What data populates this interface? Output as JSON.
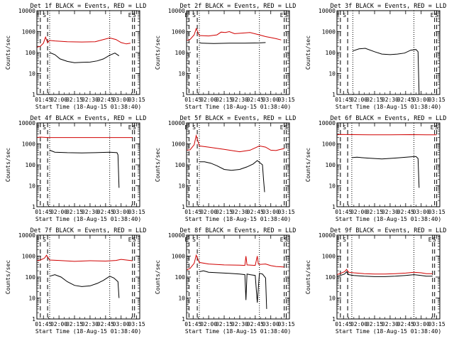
{
  "page": {
    "background": "#ffffff"
  },
  "colors": {
    "events": "#000000",
    "lld": "#d00000",
    "axis": "#000000"
  },
  "common": {
    "xlabel": "Start Time (18-Aug-15 01:38:40)",
    "ylabel": "Counts/sec",
    "x_ticks": [
      "01:45",
      "02:00",
      "02:15",
      "02:30",
      "02:45",
      "03:00",
      "03:15"
    ],
    "y_ticks": [
      "1",
      "10",
      "100",
      "1000",
      "10000"
    ],
    "markers": {
      "E": "E",
      "S": "S"
    }
  },
  "chart_data": [
    {
      "type": "line",
      "title": "Det 1f BLACK = Events, RED = LLD",
      "xlim": [
        "01:38:40",
        "03:18:00"
      ],
      "ylim": [
        1,
        10000
      ],
      "yscale": "log",
      "vlines_dashed": [
        "01:42",
        "01:49",
        "03:11",
        "03:13"
      ],
      "vlines_dotted": [
        "01:51",
        "02:49"
      ],
      "series": [
        {
          "name": "BLACK",
          "x": [
            "01:51",
            "01:56",
            "02:01",
            "02:08",
            "02:15",
            "02:22",
            "02:30",
            "02:37",
            "02:43",
            "02:49",
            "02:54",
            "02:58"
          ],
          "y": [
            100,
            80,
            50,
            38,
            33,
            34,
            35,
            40,
            50,
            75,
            95,
            70
          ]
        },
        {
          "name": "RED",
          "x": [
            "01:38:40",
            "01:42",
            "01:45",
            "01:47",
            "01:49",
            "01:51",
            "01:56",
            "02:08",
            "02:22",
            "02:35",
            "02:43",
            "02:49",
            "02:55",
            "03:00",
            "03:05",
            "03:09"
          ],
          "y": [
            180,
            200,
            280,
            550,
            300,
            380,
            360,
            330,
            320,
            330,
            420,
            500,
            420,
            300,
            260,
            280
          ]
        }
      ]
    },
    {
      "type": "line",
      "title": "Det 2f BLACK = Events, RED = LLD",
      "xlim": [
        "01:38:40",
        "03:18:00"
      ],
      "ylim": [
        1,
        10000
      ],
      "yscale": "log",
      "vlines_dashed": [
        "01:41",
        "01:49",
        "03:13",
        "03:15"
      ],
      "vlines_dotted": [
        "01:51",
        "02:49"
      ],
      "series": [
        {
          "name": "BLACK",
          "x": [
            "01:51",
            "01:53",
            "02:05",
            "02:20",
            "02:35",
            "02:49",
            "02:55"
          ],
          "y": [
            300,
            280,
            270,
            280,
            280,
            290,
            300
          ]
        },
        {
          "name": "RED",
          "x": [
            "01:38:40",
            "01:42",
            "01:46",
            "01:48",
            "01:51",
            "02:00",
            "02:08",
            "02:12",
            "02:16",
            "02:20",
            "02:25",
            "02:32",
            "02:40",
            "02:49",
            "02:55",
            "03:00",
            "03:05",
            "03:10"
          ],
          "y": [
            380,
            420,
            700,
            1400,
            650,
            620,
            700,
            950,
            900,
            1000,
            800,
            850,
            900,
            700,
            580,
            520,
            460,
            400
          ]
        }
      ]
    },
    {
      "type": "line",
      "title": "Det 3f BLACK = Events, RED = LLD",
      "xlim": [
        "01:38:40",
        "03:18:00"
      ],
      "ylim": [
        1,
        10000
      ],
      "yscale": "log",
      "vlines_dashed": [
        "01:42",
        "01:49",
        "03:13",
        "03:15"
      ],
      "vlines_dotted": [
        "01:54",
        "02:53"
      ],
      "series": [
        {
          "name": "BLACK",
          "x": [
            "01:54",
            "02:00",
            "02:06",
            "02:15",
            "02:22",
            "02:30",
            "02:37",
            "02:44",
            "02:50",
            "02:55",
            "02:57",
            "02:58"
          ],
          "y": [
            120,
            150,
            160,
            110,
            85,
            80,
            85,
            95,
            130,
            140,
            110,
            1
          ]
        }
      ]
    },
    {
      "type": "line",
      "title": "Det 4f BLACK = Events, RED = LLD",
      "xlim": [
        "01:38:40",
        "03:18:00"
      ],
      "ylim": [
        1,
        10000
      ],
      "yscale": "log",
      "vlines_dashed": [
        "01:42",
        "01:49",
        "03:11",
        "03:13"
      ],
      "vlines_dotted": [
        "01:51",
        "02:49"
      ],
      "series": [
        {
          "name": "BLACK",
          "x": [
            "01:51",
            "01:56",
            "02:08",
            "02:22",
            "02:35",
            "02:49",
            "02:56",
            "02:57",
            "02:58"
          ],
          "y": [
            500,
            400,
            380,
            370,
            380,
            400,
            380,
            300,
            8
          ]
        },
        {
          "name": "RED",
          "x": [
            "01:38:40",
            "01:42",
            "01:49",
            "02:08",
            "02:30",
            "02:49",
            "03:05",
            "03:11"
          ],
          "y": [
            2000,
            2100,
            2000,
            2000,
            2000,
            2000,
            2000,
            2000
          ]
        }
      ]
    },
    {
      "type": "line",
      "title": "Det 5f BLACK = Events, RED = LLD",
      "xlim": [
        "01:38:40",
        "03:18:00"
      ],
      "ylim": [
        1,
        10000
      ],
      "yscale": "log",
      "vlines_dashed": [
        "01:41",
        "01:49",
        "03:13",
        "03:15"
      ],
      "vlines_dotted": [
        "01:51",
        "02:49"
      ],
      "series": [
        {
          "name": "BLACK",
          "x": [
            "01:51",
            "01:56",
            "02:02",
            "02:08",
            "02:15",
            "02:22",
            "02:30",
            "02:37",
            "02:43",
            "02:47",
            "02:52",
            "02:53",
            "02:54"
          ],
          "y": [
            140,
            140,
            120,
            90,
            60,
            55,
            60,
            80,
            110,
            160,
            100,
            20,
            5
          ]
        },
        {
          "name": "RED",
          "x": [
            "01:38:40",
            "01:42",
            "01:46",
            "01:48",
            "01:51",
            "02:00",
            "02:15",
            "02:30",
            "02:40",
            "02:49",
            "02:55",
            "03:00",
            "03:05",
            "03:13"
          ],
          "y": [
            500,
            520,
            900,
            2500,
            800,
            700,
            550,
            420,
            500,
            800,
            700,
            500,
            480,
            600
          ]
        }
      ]
    },
    {
      "type": "line",
      "title": "Det 6f BLACK = Events, RED = LLD",
      "xlim": [
        "01:38:40",
        "03:18:00"
      ],
      "ylim": [
        1,
        10000
      ],
      "yscale": "log",
      "vlines_dashed": [
        "01:42",
        "01:49",
        "03:13",
        "03:15"
      ],
      "vlines_dotted": [
        "01:53",
        "02:53"
      ],
      "series": [
        {
          "name": "BLACK",
          "x": [
            "01:53",
            "01:58",
            "02:08",
            "02:22",
            "02:35",
            "02:50",
            "02:55",
            "02:57",
            "02:58"
          ],
          "y": [
            220,
            230,
            210,
            190,
            210,
            240,
            250,
            200,
            8
          ]
        },
        {
          "name": "RED",
          "x": [
            "01:38:40",
            "01:42",
            "01:53",
            "02:10",
            "02:30",
            "02:50",
            "03:05",
            "03:15"
          ],
          "y": [
            2700,
            2800,
            2750,
            2700,
            2700,
            2750,
            2700,
            2700
          ]
        }
      ]
    },
    {
      "type": "line",
      "title": "Det 7f BLACK = Events, RED = LLD",
      "xlim": [
        "01:38:40",
        "03:18:00"
      ],
      "ylim": [
        1,
        10000
      ],
      "yscale": "log",
      "vlines_dashed": [
        "01:42",
        "01:49",
        "03:11",
        "03:13"
      ],
      "vlines_dotted": [
        "01:51",
        "02:49"
      ],
      "series": [
        {
          "name": "BLACK",
          "x": [
            "01:51",
            "01:56",
            "02:02",
            "02:08",
            "02:15",
            "02:22",
            "02:30",
            "02:37",
            "02:43",
            "02:49",
            "02:53",
            "02:57",
            "02:58"
          ],
          "y": [
            110,
            130,
            100,
            60,
            40,
            35,
            38,
            50,
            70,
            110,
            90,
            60,
            10
          ]
        },
        {
          "name": "RED",
          "x": [
            "01:38:40",
            "01:42",
            "01:46",
            "01:48",
            "01:51",
            "02:00",
            "02:15",
            "02:30",
            "02:45",
            "02:55",
            "03:00",
            "03:05",
            "03:11"
          ],
          "y": [
            600,
            650,
            800,
            1100,
            650,
            620,
            560,
            600,
            580,
            620,
            700,
            650,
            600
          ]
        }
      ]
    },
    {
      "type": "line",
      "title": "Det 8f BLACK = Events, RED = LLD",
      "xlim": [
        "01:38:40",
        "03:18:00"
      ],
      "ylim": [
        1,
        10000
      ],
      "yscale": "log",
      "vlines_dashed": [
        "01:41",
        "01:49",
        "03:13",
        "03:15"
      ],
      "vlines_dotted": [
        "01:51",
        "02:49"
      ],
      "series": [
        {
          "name": "BLACK",
          "x": [
            "01:51",
            "01:55",
            "02:00",
            "02:10",
            "02:20",
            "02:30",
            "02:35",
            "02:36",
            "02:37",
            "02:40",
            "02:45",
            "02:47",
            "02:49",
            "02:52",
            "02:55",
            "02:56"
          ],
          "y": [
            180,
            200,
            170,
            160,
            150,
            140,
            130,
            8,
            140,
            130,
            120,
            6,
            150,
            140,
            90,
            3
          ]
        },
        {
          "name": "RED",
          "x": [
            "01:38:40",
            "01:42",
            "01:46",
            "01:48",
            "01:51",
            "02:00",
            "02:15",
            "02:30",
            "02:35",
            "02:36",
            "02:37",
            "02:45",
            "02:47",
            "02:48",
            "02:49",
            "02:55",
            "03:00",
            "03:05",
            "03:13"
          ],
          "y": [
            220,
            260,
            450,
            1100,
            500,
            420,
            380,
            370,
            360,
            1000,
            380,
            360,
            1000,
            420,
            400,
            420,
            350,
            320,
            300
          ]
        }
      ]
    },
    {
      "type": "line",
      "title": "Det 9f BLACK = Events, RED = LLD",
      "xlim": [
        "01:38:40",
        "03:18:00"
      ],
      "ylim": [
        1,
        10000
      ],
      "yscale": "log",
      "vlines_dashed": [
        "01:42",
        "01:49",
        "03:11",
        "03:13"
      ],
      "vlines_dotted": [
        "01:53",
        "02:53"
      ],
      "series": [
        {
          "name": "BLACK",
          "x": [
            "01:38:40",
            "01:42",
            "01:46",
            "01:48",
            "01:50",
            "01:55",
            "02:05",
            "02:15",
            "02:25",
            "02:35",
            "02:45",
            "02:53",
            "03:00",
            "03:05",
            "03:11"
          ],
          "y": [
            110,
            120,
            140,
            180,
            130,
            120,
            110,
            105,
            105,
            110,
            120,
            130,
            120,
            110,
            110
          ]
        },
        {
          "name": "RED",
          "x": [
            "01:38:40",
            "01:42",
            "01:46",
            "01:48",
            "01:50",
            "01:55",
            "02:05",
            "02:15",
            "02:25",
            "02:35",
            "02:45",
            "02:53",
            "03:00",
            "03:05",
            "03:11"
          ],
          "y": [
            130,
            150,
            180,
            230,
            170,
            160,
            145,
            140,
            140,
            145,
            155,
            170,
            160,
            145,
            145
          ]
        }
      ]
    }
  ]
}
